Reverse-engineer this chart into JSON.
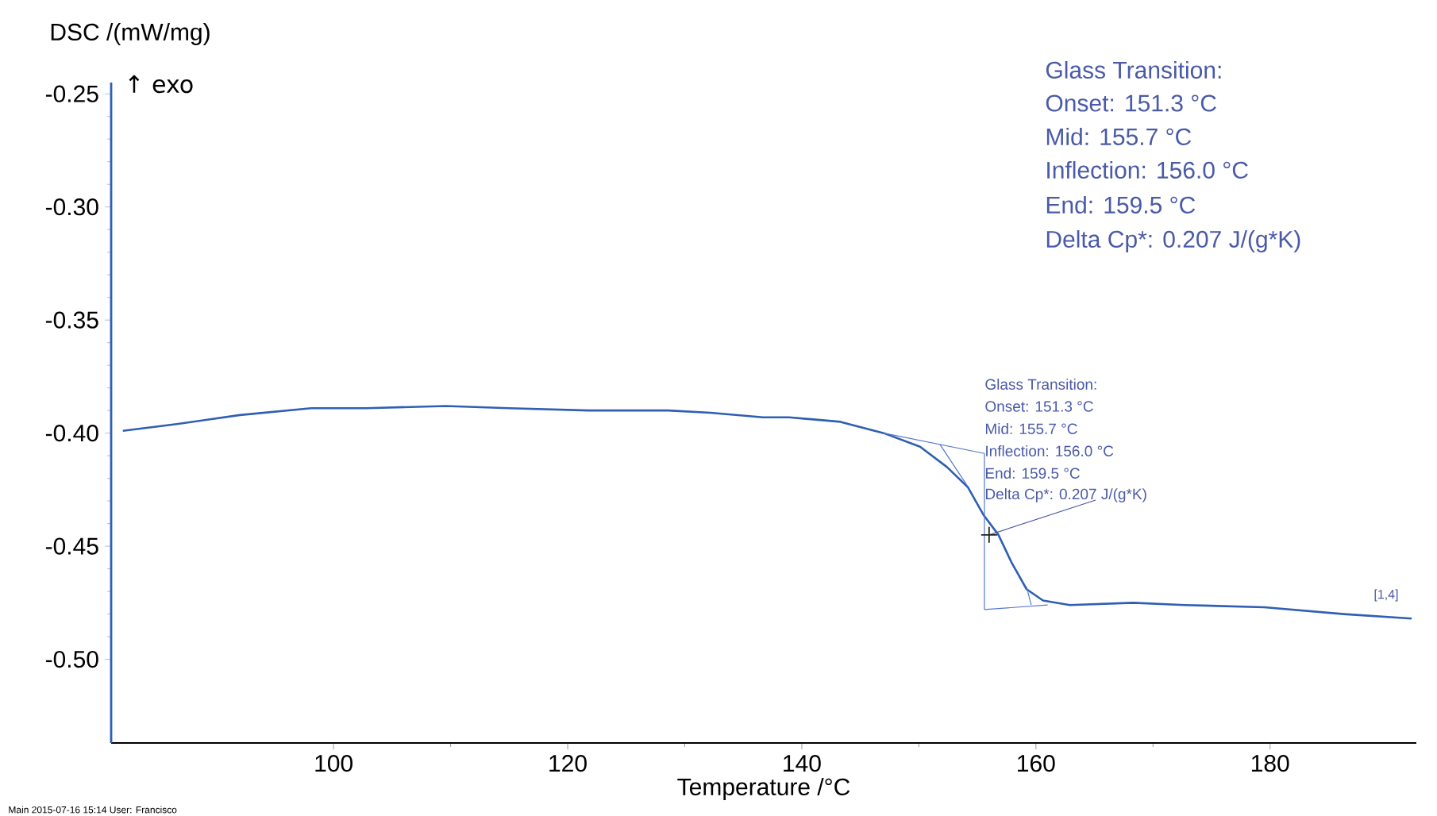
{
  "chart_data": {
    "type": "line",
    "xlabel": "Temperature /°C",
    "ylabel": "DSC /(mW/mg)",
    "xlim": [
      81,
      192.5
    ],
    "ylim": [
      -0.537,
      -0.245
    ],
    "xticks": [
      100,
      120,
      140,
      160,
      180
    ],
    "yticks": [
      {
        "value": -0.25,
        "label": "-0.25"
      },
      {
        "value": -0.3,
        "label": "-0.30"
      },
      {
        "value": -0.35,
        "label": "-0.35"
      },
      {
        "value": -0.4,
        "label": "-0.40"
      },
      {
        "value": -0.45,
        "label": "-0.45"
      },
      {
        "value": -0.5,
        "label": "-0.50"
      }
    ],
    "series": [
      {
        "color": "#2f5fb3",
        "x": [
          82.0,
          86.6,
          92.0,
          98.1,
          102.8,
          109.6,
          115.0,
          121.8,
          128.6,
          132.2,
          136.7,
          138.9,
          143.3,
          147.0,
          150.1,
          152.4,
          154.2,
          155.5,
          156.8,
          157.9,
          159.2,
          160.6,
          162.9,
          168.3,
          172.7,
          179.5,
          186.3,
          192.1
        ],
        "values": [
          -0.399,
          -0.396,
          -0.392,
          -0.389,
          -0.389,
          -0.388,
          -0.389,
          -0.39,
          -0.39,
          -0.391,
          -0.393,
          -0.393,
          -0.395,
          -0.4,
          -0.406,
          -0.415,
          -0.424,
          -0.436,
          -0.445,
          -0.457,
          -0.469,
          -0.474,
          -0.476,
          -0.475,
          -0.476,
          -0.477,
          -0.48,
          -0.482
        ]
      },
      {
        "color": "#5577cc",
        "x": [
          147.0,
          155.6
        ],
        "values": [
          -0.4,
          -0.409
        ]
      },
      {
        "color": "#5577cc",
        "x": [
          155.6,
          161.0
        ],
        "values": [
          -0.478,
          -0.476
        ]
      },
      {
        "color": "#5577cc",
        "x": [
          155.6,
          155.6
        ],
        "values": [
          -0.409,
          -0.478
        ]
      },
      {
        "color": "#5577cc",
        "x": [
          151.8,
          154.1
        ],
        "values": [
          -0.405,
          -0.423
        ]
      },
      {
        "color": "#5577cc",
        "x": [
          159.2,
          159.6
        ],
        "values": [
          -0.468,
          -0.476
        ]
      },
      {
        "type": "scatter",
        "marker": "cross",
        "color": "#222222",
        "x": [
          156.0
        ],
        "values": [
          -0.445
        ]
      }
    ],
    "annotations": [
      "↑ exo",
      "Glass Transition:",
      "Onset: 151.3 °C",
      "Mid: 155.7 °C",
      "Inflection: 156.0 °C",
      "End: 159.5 °C",
      {
        "text": "Delta Cp*: 0.207 J/(g*K)",
        "x": 156.0,
        "y": -0.445
      },
      "Glass Transition:",
      "Onset: 151.3 °C",
      "Mid: 155.7 °C",
      "Inflection: 156.0 °C",
      "End: 159.5 °C",
      "Delta Cp*: 0.207 J/(g*K)",
      "[1,4]",
      "Main 2015-07-16 15:14 User: Francisco"
    ]
  }
}
